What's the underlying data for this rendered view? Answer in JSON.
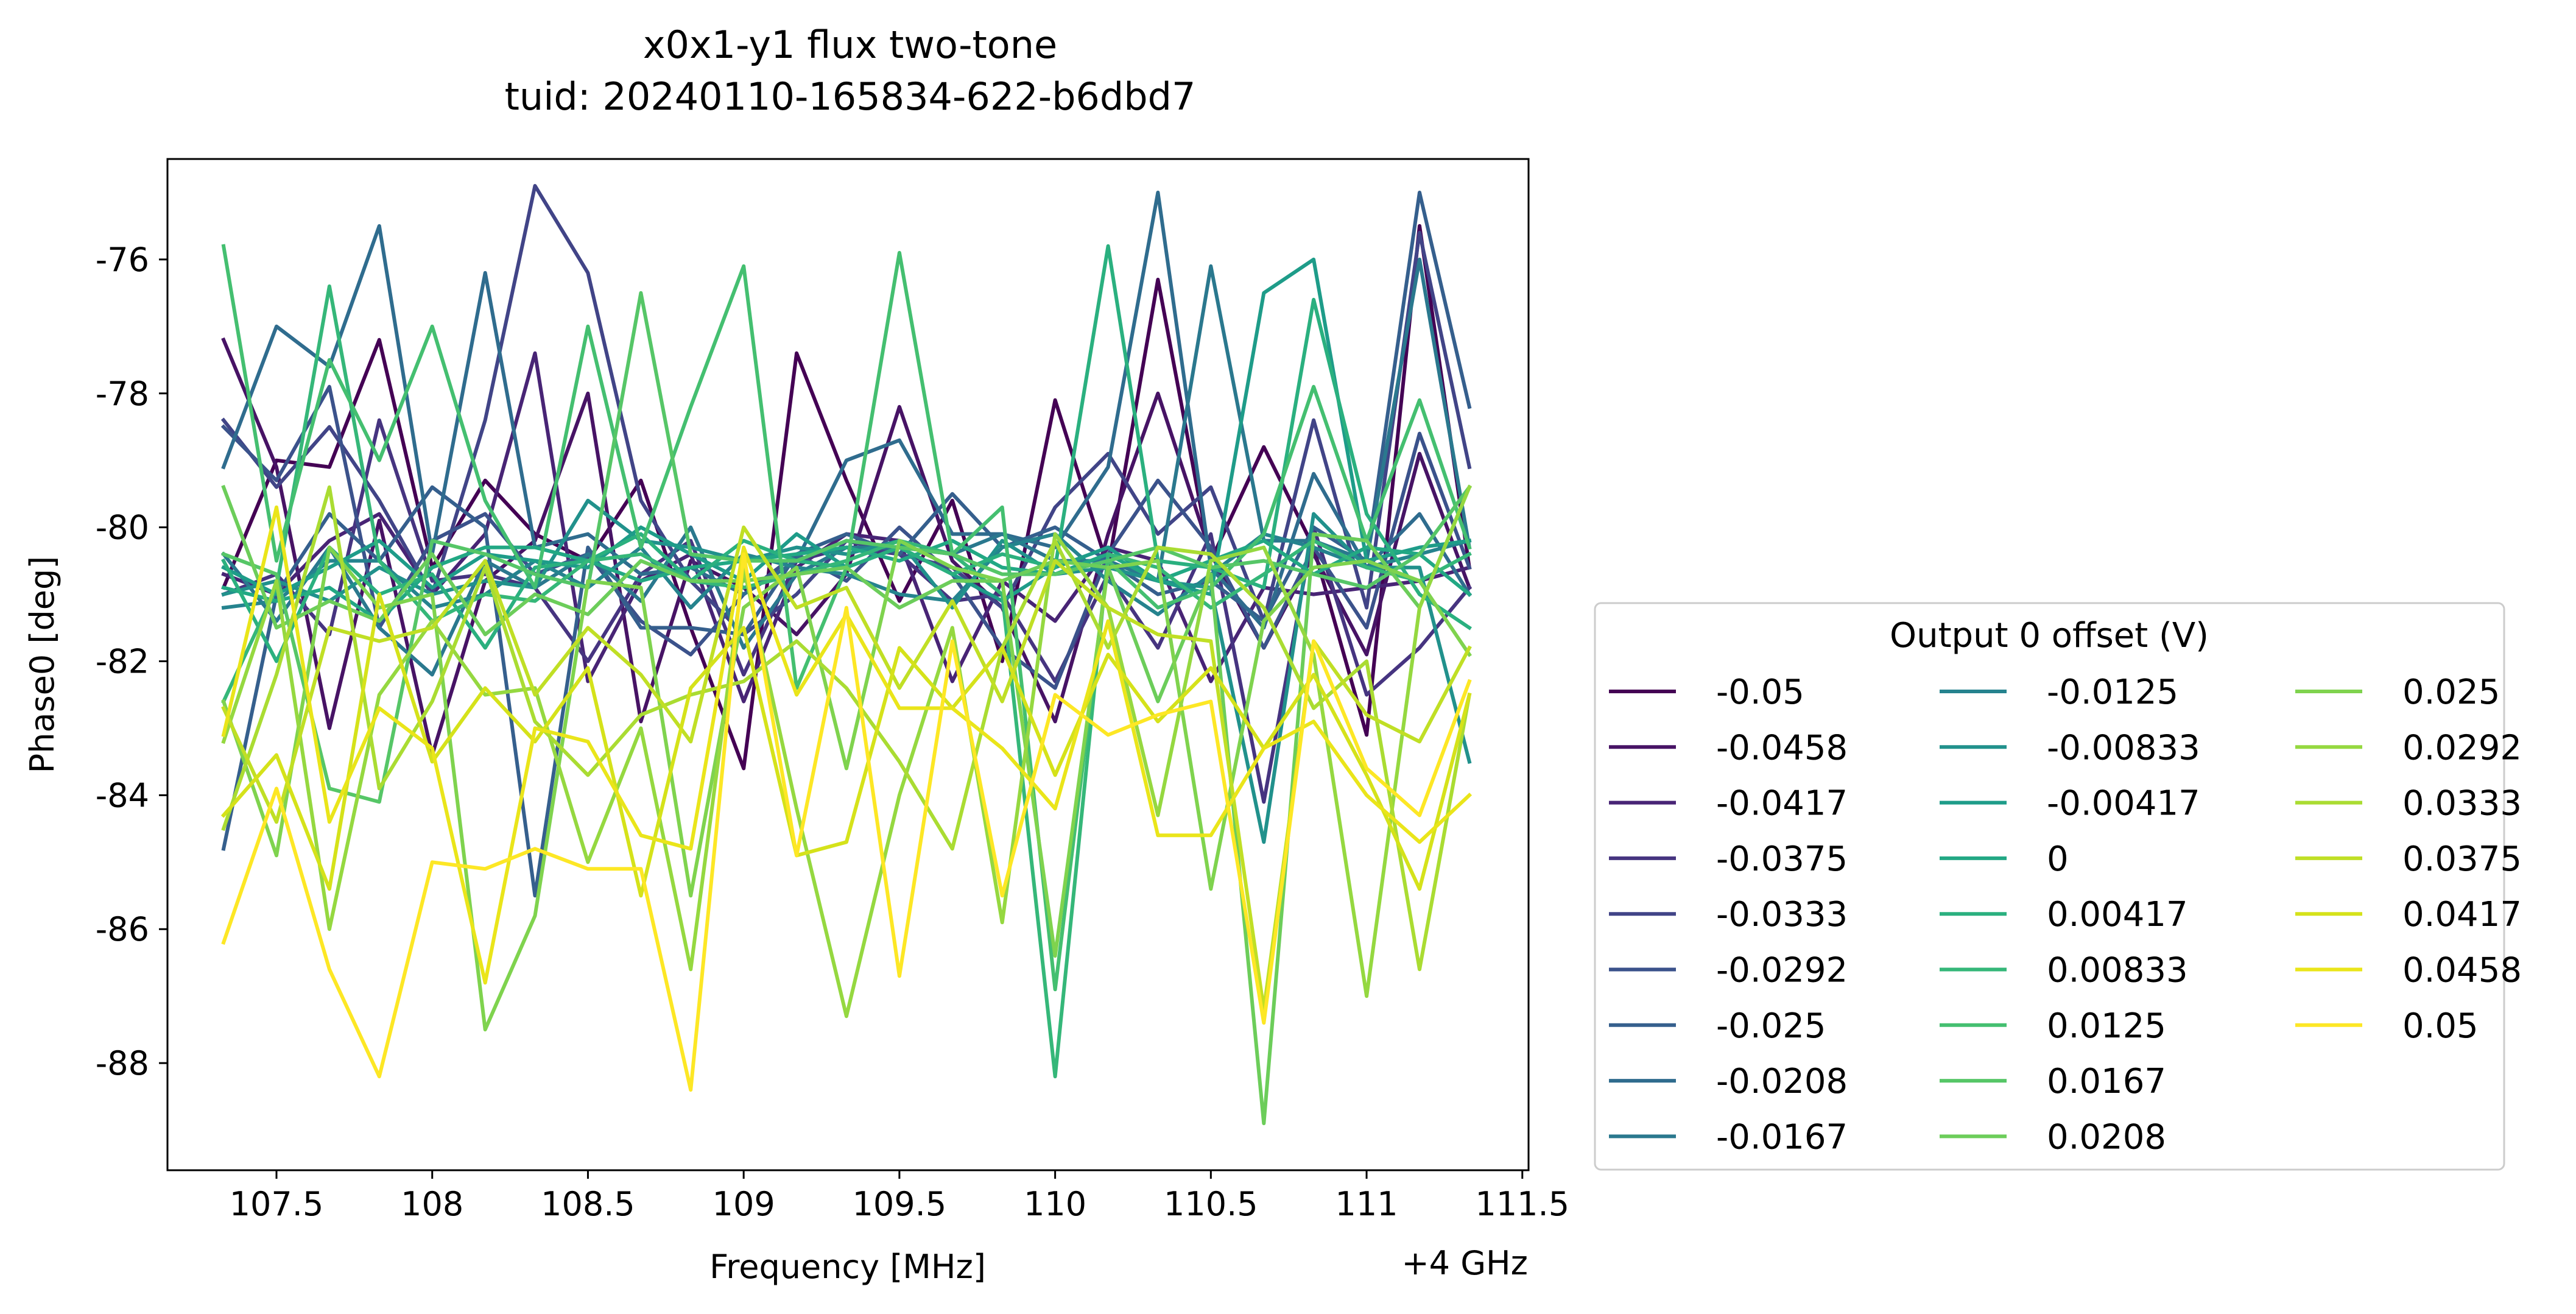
{
  "chart_data": {
    "type": "line",
    "title": [
      "x0x1-y1 flux two-tone",
      "tuid: 20240110-165834-622-b6dbd7"
    ],
    "xlabel": "Frequency [MHz]",
    "x_offset_label": "+4 GHz",
    "ylabel": "Phase0 [deg]",
    "xlim": [
      107.15,
      111.52
    ],
    "ylim": [
      -89.6,
      -74.5
    ],
    "x_ticks": [
      107.5,
      108,
      108.5,
      109,
      109.5,
      110,
      110.5,
      111,
      111.5
    ],
    "x_tick_labels": [
      "107.5",
      "108",
      "108.5",
      "109",
      "109.5",
      "110",
      "110.5",
      "111",
      "111.5"
    ],
    "y_ticks": [
      -88,
      -86,
      -84,
      -82,
      -80,
      -78,
      -76
    ],
    "y_tick_labels": [
      "-88",
      "-86",
      "-84",
      "-82",
      "-80",
      "-78",
      "-76"
    ],
    "grid": false,
    "legend_title": "Output 0 offset (V)",
    "legend_position": "right",
    "legend_columns": 3,
    "x": [
      107.33,
      107.5,
      107.67,
      107.83,
      108.0,
      108.17,
      108.33,
      108.5,
      108.67,
      108.83,
      109.0,
      109.17,
      109.33,
      109.5,
      109.67,
      109.83,
      110.0,
      110.17,
      110.33,
      110.5,
      110.67,
      110.83,
      111.0,
      111.17,
      111.33
    ],
    "series": [
      {
        "name": "-0.05",
        "color": "#440154",
        "values": [
          -80.9,
          -79.0,
          -79.1,
          -77.2,
          -80.6,
          -79.3,
          -80.1,
          -80.5,
          -79.3,
          -81.5,
          -83.6,
          -77.4,
          -79.3,
          -81.1,
          -79.6,
          -82.0,
          -78.1,
          -80.6,
          -76.3,
          -80.5,
          -78.8,
          -80.3,
          -83.1,
          -75.5,
          -80.6
        ]
      },
      {
        "name": "-0.0458",
        "color": "#471365",
        "values": [
          -77.2,
          -79.1,
          -83.0,
          -79.9,
          -83.4,
          -80.8,
          -80.2,
          -78.0,
          -82.9,
          -80.5,
          -80.9,
          -81.6,
          -80.7,
          -78.2,
          -80.5,
          -81.2,
          -82.9,
          -80.1,
          -78.0,
          -80.4,
          -81.8,
          -80.4,
          -81.9,
          -78.9,
          -80.9
        ]
      },
      {
        "name": "-0.0417",
        "color": "#482475",
        "values": [
          -80.7,
          -81.0,
          -80.2,
          -79.8,
          -81.0,
          -80.1,
          -77.4,
          -82.3,
          -80.8,
          -80.4,
          -82.6,
          -80.6,
          -80.1,
          -80.2,
          -82.3,
          -80.8,
          -81.4,
          -80.3,
          -80.5,
          -82.3,
          -80.9,
          -81.0,
          -80.9,
          -80.8,
          -80.6
        ]
      },
      {
        "name": "-0.0375",
        "color": "#463480",
        "values": [
          -81.0,
          -80.7,
          -81.6,
          -78.4,
          -80.8,
          -80.7,
          -80.9,
          -82.0,
          -80.7,
          -80.2,
          -82.2,
          -80.5,
          -80.3,
          -80.4,
          -81.1,
          -81.0,
          -82.3,
          -80.7,
          -81.8,
          -80.1,
          -84.1,
          -80.0,
          -82.5,
          -81.8,
          -80.9
        ]
      },
      {
        "name": "-0.0333",
        "color": "#414487",
        "values": [
          -78.4,
          -79.4,
          -78.5,
          -79.6,
          -81.0,
          -78.4,
          -74.9,
          -76.2,
          -79.6,
          -80.8,
          -81.6,
          -81.0,
          -80.2,
          -80.4,
          -80.6,
          -81.2,
          -79.7,
          -78.9,
          -80.1,
          -79.4,
          -81.4,
          -78.4,
          -81.2,
          -75.6,
          -79.1
        ]
      },
      {
        "name": "-0.0292",
        "color": "#3b528b",
        "values": [
          -78.5,
          -79.3,
          -77.9,
          -81.5,
          -80.2,
          -79.8,
          -80.7,
          -80.4,
          -81.4,
          -81.9,
          -81.0,
          -80.4,
          -80.8,
          -80.0,
          -80.7,
          -81.8,
          -82.4,
          -80.4,
          -79.3,
          -80.3,
          -81.8,
          -80.3,
          -81.5,
          -78.6,
          -80.6
        ]
      },
      {
        "name": "-0.025",
        "color": "#355f8d",
        "values": [
          -84.8,
          -81.0,
          -79.8,
          -80.5,
          -79.4,
          -80.0,
          -85.5,
          -80.3,
          -81.5,
          -81.5,
          -81.6,
          -80.4,
          -80.1,
          -80.4,
          -79.5,
          -80.3,
          -80.0,
          -80.5,
          -81.0,
          -80.8,
          -81.4,
          -80.0,
          -80.5,
          -75.0,
          -78.2
        ]
      },
      {
        "name": "-0.0208",
        "color": "#2f6c8e",
        "values": [
          -79.1,
          -77.0,
          -77.6,
          -75.5,
          -80.4,
          -76.2,
          -80.3,
          -80.1,
          -80.7,
          -80.6,
          -81.0,
          -80.5,
          -79.0,
          -78.7,
          -80.1,
          -80.1,
          -80.3,
          -79.1,
          -75.0,
          -80.6,
          -81.5,
          -79.2,
          -80.6,
          -79.8,
          -81.0
        ]
      },
      {
        "name": "-0.0167",
        "color": "#2a788e",
        "values": [
          -80.4,
          -81.4,
          -80.3,
          -81.5,
          -82.2,
          -80.5,
          -80.9,
          -80.4,
          -81.1,
          -80.0,
          -81.8,
          -80.7,
          -80.3,
          -80.3,
          -80.4,
          -80.1,
          -80.5,
          -80.5,
          -80.8,
          -76.1,
          -80.2,
          -80.2,
          -80.5,
          -76.0,
          -80.3
        ]
      },
      {
        "name": "-0.0125",
        "color": "#25838e",
        "values": [
          -81.2,
          -81.1,
          -80.5,
          -80.5,
          -81.2,
          -81.0,
          -80.5,
          -80.9,
          -80.3,
          -81.2,
          -80.4,
          -80.6,
          -80.7,
          -81.0,
          -81.1,
          -80.3,
          -80.1,
          -80.8,
          -81.3,
          -80.7,
          -80.1,
          -80.3,
          -80.6,
          -80.4,
          -80.2
        ]
      },
      {
        "name": "-0.00833",
        "color": "#21918c",
        "values": [
          -81.0,
          -80.8,
          -81.1,
          -80.6,
          -81.0,
          -80.8,
          -80.9,
          -79.6,
          -80.2,
          -80.3,
          -80.5,
          -80.3,
          -80.4,
          -80.2,
          -81.2,
          -80.2,
          -80.7,
          -80.6,
          -80.8,
          -80.9,
          -84.7,
          -79.8,
          -80.6,
          -80.6,
          -83.5
        ]
      },
      {
        "name": "-0.00417",
        "color": "#1e9c89",
        "values": [
          -80.6,
          -81.0,
          -80.6,
          -80.2,
          -80.9,
          -80.4,
          -80.5,
          -80.6,
          -80.0,
          -80.4,
          -80.8,
          -80.1,
          -80.6,
          -80.3,
          -80.7,
          -81.1,
          -80.6,
          -80.3,
          -80.8,
          -81.0,
          -76.5,
          -76.0,
          -80.5,
          -80.3,
          -80.2
        ]
      },
      {
        "name": "0",
        "color": "#22a884",
        "values": [
          -80.9,
          -81.1,
          -80.9,
          -81.4,
          -80.6,
          -80.3,
          -80.3,
          -80.5,
          -80.8,
          -80.6,
          -80.5,
          -80.4,
          -80.3,
          -80.5,
          -80.2,
          -80.6,
          -80.7,
          -80.4,
          -80.8,
          -80.5,
          -80.2,
          -80.7,
          -80.3,
          -80.4,
          -81.0
        ]
      },
      {
        "name": "0.00417",
        "color": "#2ab07f",
        "values": [
          -80.5,
          -82.0,
          -80.3,
          -81.0,
          -80.7,
          -81.8,
          -80.6,
          -80.5,
          -80.1,
          -80.8,
          -80.2,
          -80.5,
          -80.6,
          -80.3,
          -80.7,
          -80.4,
          -80.6,
          -75.8,
          -80.5,
          -80.6,
          -80.9,
          -76.6,
          -79.8,
          -81.0,
          -81.5
        ]
      },
      {
        "name": "0.00833",
        "color": "#35b779",
        "values": [
          -82.6,
          -80.9,
          -76.4,
          -80.5,
          -81.4,
          -81.0,
          -81.1,
          -80.5,
          -80.4,
          -80.8,
          -80.9,
          -80.7,
          -80.5,
          -80.2,
          -80.4,
          -81.0,
          -88.2,
          -80.4,
          -80.6,
          -81.2,
          -80.7,
          -80.2,
          -80.6,
          -80.8,
          -80.4
        ]
      },
      {
        "name": "0.0125",
        "color": "#44bf70",
        "values": [
          -75.8,
          -80.5,
          -77.5,
          -79.0,
          -77.0,
          -79.6,
          -80.9,
          -77.0,
          -80.3,
          -78.2,
          -76.1,
          -82.4,
          -80.6,
          -75.9,
          -80.4,
          -79.7,
          -86.9,
          -80.5,
          -81.2,
          -80.9,
          -80.1,
          -77.9,
          -80.2,
          -78.1,
          -80.3
        ]
      },
      {
        "name": "0.0167",
        "color": "#56c667",
        "values": [
          -80.4,
          -80.7,
          -83.9,
          -84.1,
          -80.2,
          -80.4,
          -80.7,
          -80.9,
          -76.5,
          -80.4,
          -80.5,
          -80.5,
          -80.2,
          -80.3,
          -80.4,
          -80.7,
          -80.7,
          -80.5,
          -80.3,
          -80.6,
          -80.5,
          -80.7,
          -80.9,
          -80.4,
          -79.4
        ]
      },
      {
        "name": "0.0208",
        "color": "#6ccd5a",
        "values": [
          -79.4,
          -81.5,
          -81.1,
          -81.4,
          -80.4,
          -81.6,
          -81.0,
          -81.3,
          -80.5,
          -80.8,
          -80.8,
          -80.7,
          -80.6,
          -81.2,
          -80.8,
          -80.8,
          -80.5,
          -80.6,
          -82.6,
          -80.7,
          -88.9,
          -80.1,
          -80.2,
          -81.2,
          -79.4
        ]
      },
      {
        "name": "0.025",
        "color": "#7fd34e",
        "values": [
          -82.6,
          -84.9,
          -80.3,
          -81.2,
          -81.0,
          -87.5,
          -85.8,
          -80.8,
          -80.9,
          -85.5,
          -81.2,
          -80.6,
          -83.6,
          -80.2,
          -80.6,
          -80.8,
          -86.4,
          -80.6,
          -80.5,
          -85.4,
          -81.4,
          -80.6,
          -80.5,
          -80.8,
          -81.9
        ]
      },
      {
        "name": "0.0292",
        "color": "#95d840",
        "values": [
          -83.2,
          -80.8,
          -86.0,
          -82.5,
          -81.4,
          -82.5,
          -82.4,
          -85.0,
          -83.0,
          -86.6,
          -80.6,
          -84.2,
          -87.3,
          -84.0,
          -81.5,
          -85.9,
          -80.1,
          -81.2,
          -84.3,
          -80.5,
          -80.3,
          -81.9,
          -87.0,
          -81.2,
          -79.4
        ]
      },
      {
        "name": "0.0333",
        "color": "#aadc32",
        "values": [
          -84.5,
          -82.2,
          -79.4,
          -83.9,
          -82.6,
          -80.6,
          -82.9,
          -83.7,
          -82.8,
          -82.5,
          -82.3,
          -81.7,
          -82.4,
          -83.5,
          -84.8,
          -81.8,
          -80.2,
          -81.8,
          -80.3,
          -80.4,
          -81.2,
          -82.7,
          -82.0,
          -86.6,
          -82.5
        ]
      },
      {
        "name": "0.0375",
        "color": "#c0df25",
        "values": [
          -82.7,
          -84.4,
          -81.5,
          -81.7,
          -81.5,
          -80.5,
          -82.5,
          -81.5,
          -82.2,
          -83.2,
          -80.0,
          -81.2,
          -80.9,
          -82.4,
          -81.1,
          -82.6,
          -80.5,
          -81.2,
          -81.6,
          -81.7,
          -87.2,
          -81.7,
          -82.8,
          -83.2,
          -81.8
        ]
      },
      {
        "name": "0.0417",
        "color": "#d5e21a",
        "values": [
          -84.3,
          -83.4,
          -85.4,
          -81.0,
          -83.5,
          -82.4,
          -83.2,
          -82.1,
          -85.5,
          -82.4,
          -81.5,
          -84.9,
          -84.7,
          -81.8,
          -82.7,
          -81.8,
          -83.7,
          -81.9,
          -82.9,
          -82.1,
          -83.3,
          -82.2,
          -83.7,
          -85.4,
          -82.5
        ]
      },
      {
        "name": "0.0458",
        "color": "#eae51a",
        "values": [
          -83.1,
          -79.7,
          -84.4,
          -82.7,
          -83.3,
          -86.8,
          -83.0,
          -83.2,
          -84.6,
          -84.8,
          -80.3,
          -82.5,
          -81.3,
          -82.7,
          -82.7,
          -83.3,
          -84.2,
          -81.4,
          -84.6,
          -84.6,
          -83.3,
          -82.9,
          -84.0,
          -84.7,
          -84.0
        ]
      },
      {
        "name": "0.05",
        "color": "#fde725",
        "values": [
          -86.2,
          -83.9,
          -86.6,
          -88.2,
          -85.0,
          -85.1,
          -84.8,
          -85.1,
          -85.1,
          -88.4,
          -80.4,
          -84.9,
          -81.2,
          -86.7,
          -81.7,
          -85.5,
          -82.5,
          -83.1,
          -82.8,
          -82.6,
          -87.4,
          -81.7,
          -83.6,
          -84.3,
          -82.3
        ]
      }
    ]
  }
}
